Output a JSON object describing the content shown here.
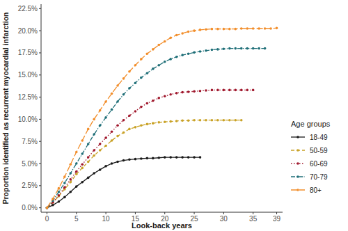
{
  "chart_data": {
    "type": "line",
    "x_label": "Look-back years",
    "y_label": "Proportion identified as recurrent myocardial infarction",
    "legend_title": "Age groups",
    "legend": "right",
    "grid": false,
    "marker": "circle",
    "x": [
      0,
      1,
      2,
      3,
      4,
      5,
      6,
      7,
      8,
      9,
      10,
      11,
      12,
      13,
      14,
      15,
      16,
      17,
      18,
      19,
      20,
      21,
      22,
      23,
      24,
      25,
      26,
      27,
      28,
      29,
      30,
      31,
      32,
      33,
      34,
      35,
      36,
      37,
      38,
      39
    ],
    "xlim": [
      -1,
      40
    ],
    "xticks": [
      0,
      5,
      10,
      15,
      20,
      25,
      30,
      35,
      39
    ],
    "ylim": [
      -0.5,
      23
    ],
    "yticks": [
      {
        "value": 0,
        "label": "0.0%"
      },
      {
        "value": 2.5,
        "label": "2.5%"
      },
      {
        "value": 5,
        "label": "5.0%"
      },
      {
        "value": 7.5,
        "label": "7.5%"
      },
      {
        "value": 10,
        "label": "10.0%"
      },
      {
        "value": 12.5,
        "label": "12.5%"
      },
      {
        "value": 15,
        "label": "15.0%"
      },
      {
        "value": 17.5,
        "label": "17.5%"
      },
      {
        "value": 20,
        "label": "20.0%"
      },
      {
        "value": 22.5,
        "label": "22.5%"
      }
    ],
    "series": [
      {
        "name": "18-49",
        "color": "#1a1a1a",
        "line_style": "solid",
        "values": [
          0,
          0.3,
          0.7,
          1.2,
          1.8,
          2.4,
          2.9,
          3.4,
          3.9,
          4.3,
          4.7,
          5.0,
          5.2,
          5.35,
          5.45,
          5.5,
          5.55,
          5.6,
          5.6,
          5.65,
          5.7,
          5.7,
          5.7,
          5.7,
          5.7,
          5.7,
          5.7,
          null,
          null,
          null,
          null,
          null,
          null,
          null,
          null,
          null,
          null,
          null,
          null,
          null
        ]
      },
      {
        "name": "50-59",
        "color": "#c9a227",
        "line_style": "dashed",
        "values": [
          0,
          0.6,
          1.3,
          2.1,
          2.9,
          3.8,
          4.5,
          5.2,
          5.9,
          6.5,
          7.0,
          7.6,
          8.1,
          8.5,
          8.9,
          9.1,
          9.3,
          9.45,
          9.55,
          9.65,
          9.7,
          9.75,
          9.8,
          9.85,
          9.85,
          9.9,
          9.9,
          9.9,
          9.9,
          9.9,
          9.9,
          9.9,
          9.9,
          9.9,
          null,
          null,
          null,
          null,
          null,
          null
        ]
      },
      {
        "name": "60-69",
        "color": "#a0182d",
        "line_style": "dotted",
        "values": [
          0,
          0.6,
          1.4,
          2.3,
          3.2,
          4.1,
          4.9,
          5.7,
          6.5,
          7.2,
          7.9,
          8.6,
          9.3,
          9.9,
          10.4,
          10.9,
          11.4,
          11.8,
          12.1,
          12.4,
          12.6,
          12.8,
          12.95,
          13.05,
          13.1,
          13.15,
          13.2,
          13.25,
          13.3,
          13.3,
          13.3,
          13.3,
          13.3,
          13.3,
          13.3,
          13.3,
          null,
          null,
          null,
          null
        ]
      },
      {
        "name": "70-79",
        "color": "#1f6f78",
        "line_style": "dotdash",
        "values": [
          0,
          0.8,
          1.8,
          2.8,
          3.9,
          5.0,
          6.1,
          7.2,
          8.3,
          9.3,
          10.2,
          11.1,
          12.0,
          12.8,
          13.5,
          14.1,
          14.7,
          15.2,
          15.7,
          16.1,
          16.5,
          16.8,
          17.05,
          17.25,
          17.4,
          17.55,
          17.65,
          17.75,
          17.85,
          17.9,
          17.95,
          18.0,
          18.0,
          18.0,
          18.0,
          18.0,
          18.0,
          18.0,
          null,
          null
        ]
      },
      {
        "name": "80+",
        "color": "#f28e2b",
        "line_style": "longdash",
        "values": [
          0,
          1.0,
          2.2,
          3.5,
          4.9,
          6.3,
          7.6,
          8.9,
          10.0,
          11.0,
          12.0,
          12.9,
          13.8,
          14.6,
          15.4,
          16.1,
          16.8,
          17.4,
          17.9,
          18.4,
          18.8,
          19.2,
          19.5,
          19.7,
          19.9,
          20.0,
          20.1,
          20.15,
          20.2,
          20.2,
          20.2,
          20.2,
          20.2,
          20.25,
          20.25,
          20.25,
          20.25,
          20.25,
          20.25,
          20.3
        ]
      }
    ]
  }
}
